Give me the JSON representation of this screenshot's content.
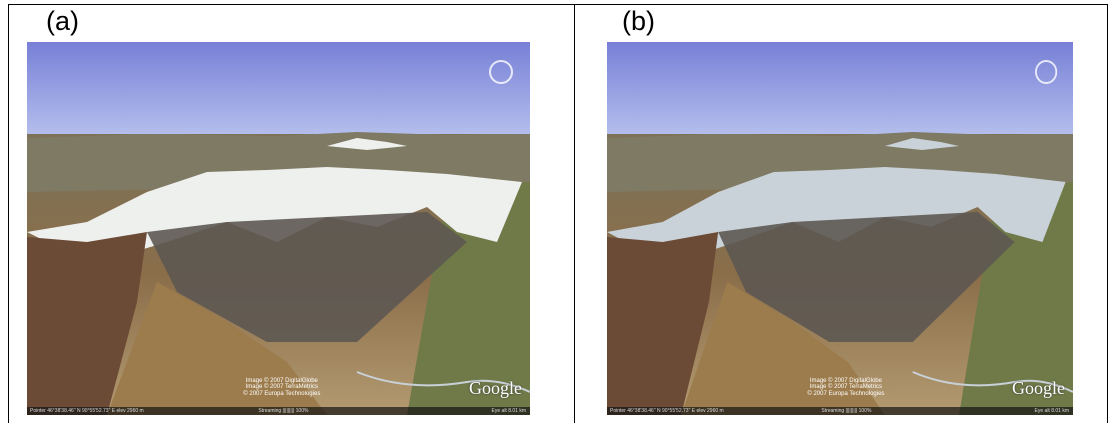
{
  "panels": [
    {
      "label": "(a)",
      "attribution": [
        "Image © 2007 DigitalGlobe",
        "Image © 2007 TerraMetrics",
        "© 2007 Europa Technologies"
      ],
      "logo": "Google",
      "status": {
        "pointer": "Pointer 46°38'38.46\" N  90°55'52.73\" E  elev 2960 m",
        "streaming": "Streaming ||||||||| 100%",
        "eye_alt": "Eye alt  8.01 km"
      }
    },
    {
      "label": "(b)",
      "attribution": [
        "Image © 2007 DigitalGlobe",
        "Image © 2007 TerraMetrics",
        "© 2007 Europa Technologies"
      ],
      "logo": "Google",
      "status": {
        "pointer": "Pointer 46°38'38.46\" N  90°55'52.73\" E  elev 2960 m",
        "streaming": "Streaming ||||||||| 100%",
        "eye_alt": "Eye alt  8.01 km"
      }
    }
  ]
}
